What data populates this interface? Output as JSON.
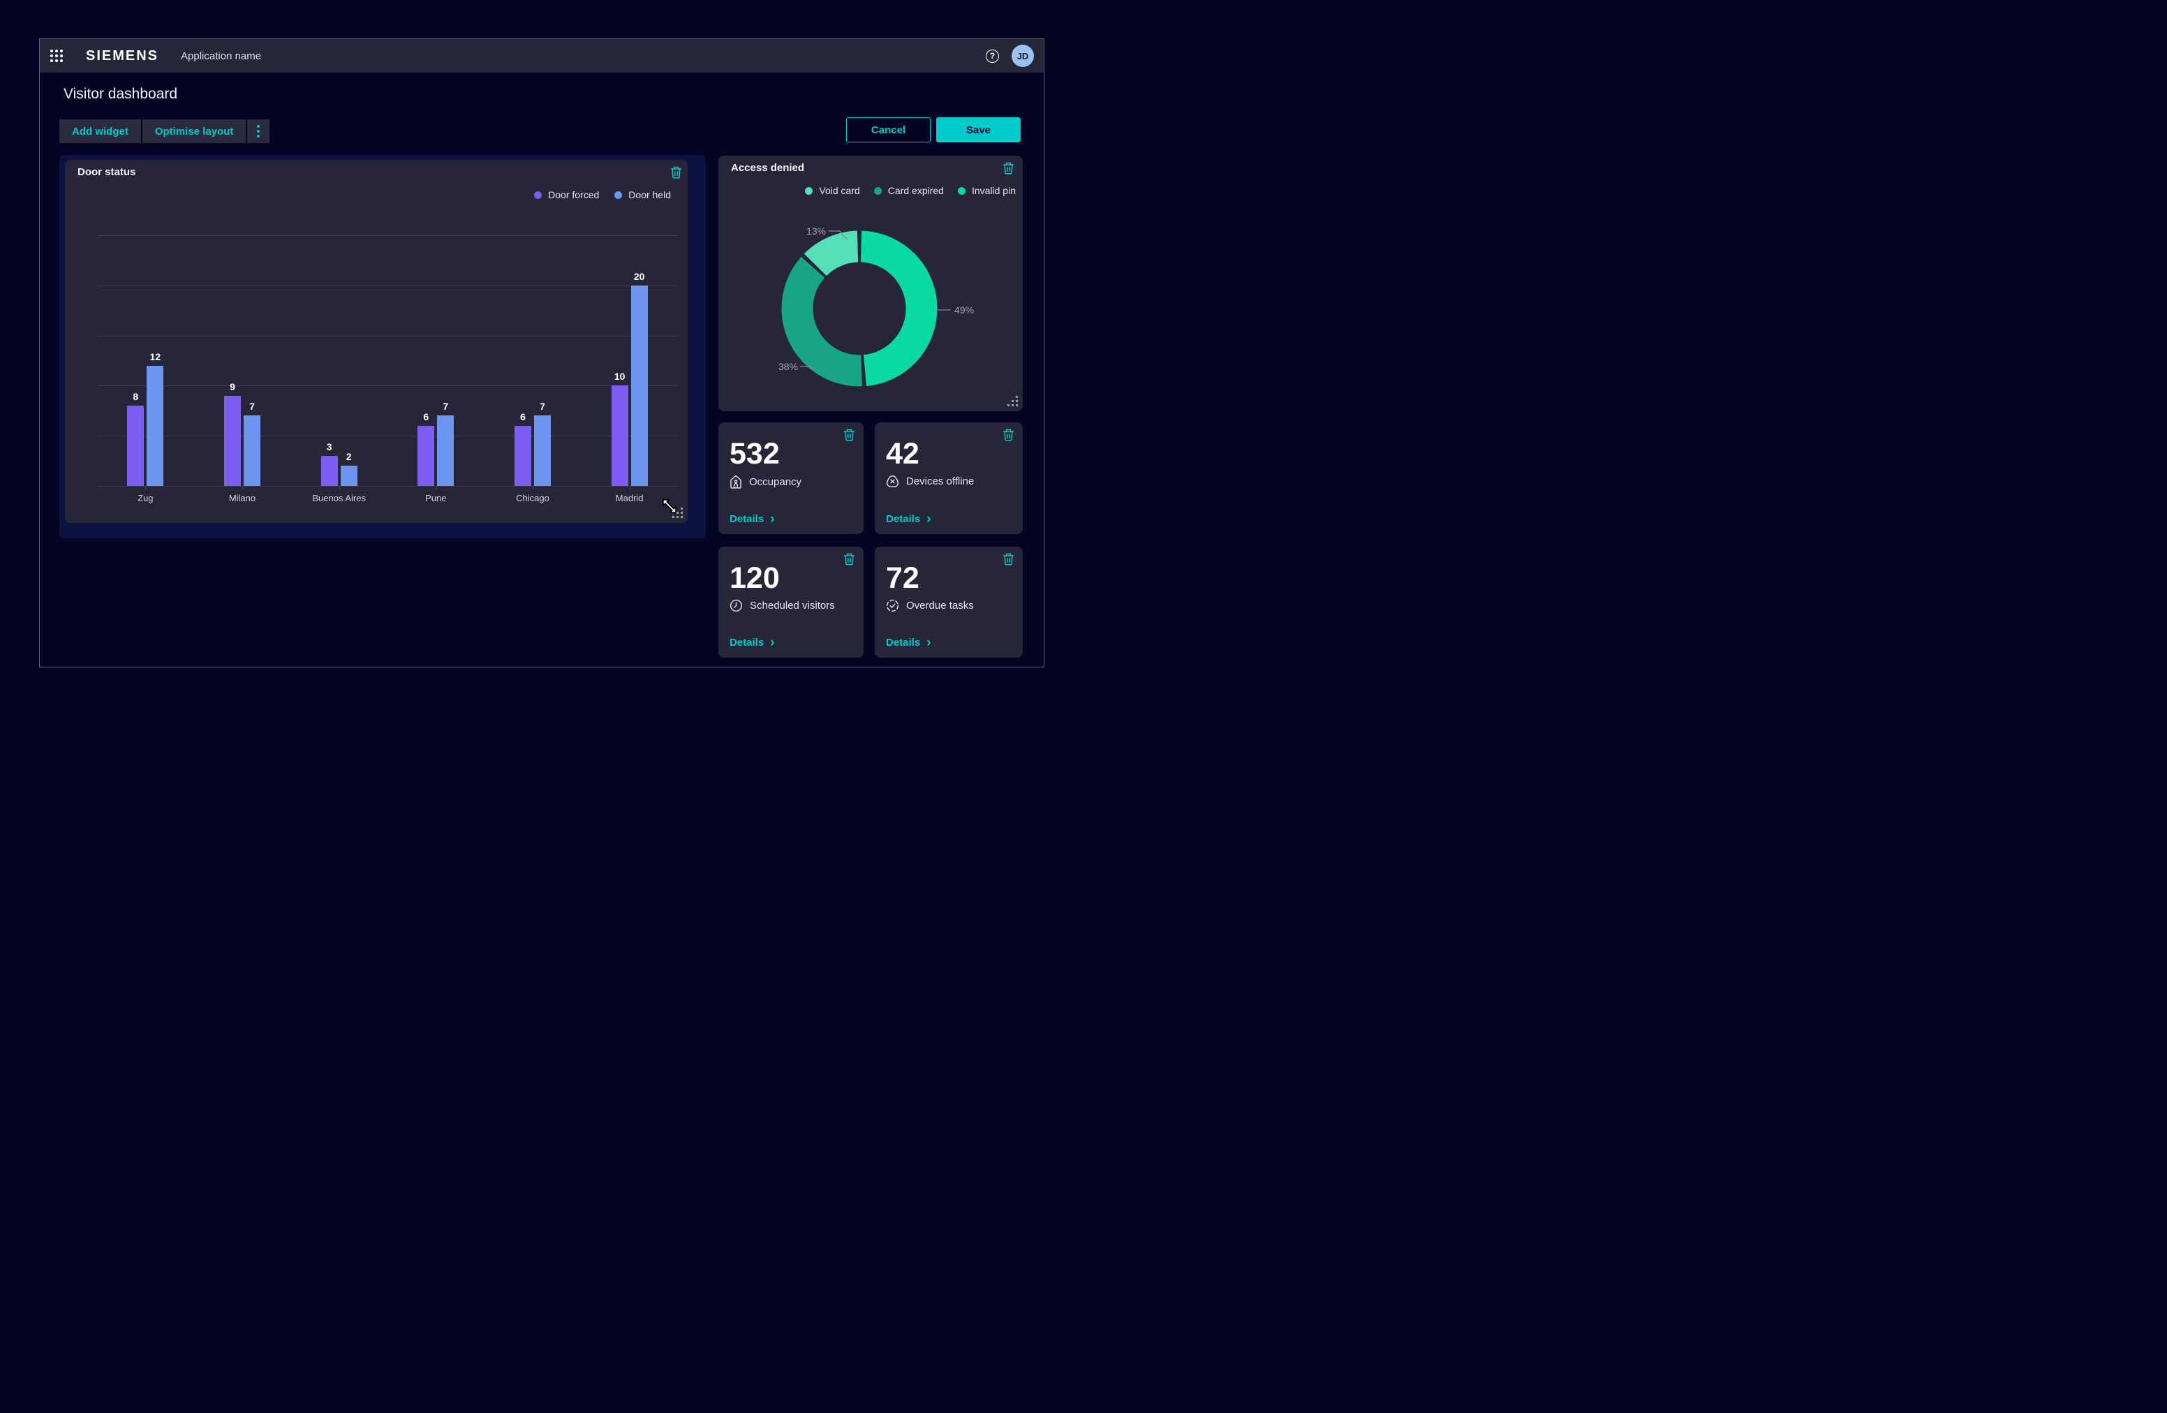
{
  "header": {
    "brand": "SIEMENS",
    "app_name": "Application name",
    "avatar_initials": "JD",
    "help_glyph": "?"
  },
  "page": {
    "title": "Visitor dashboard"
  },
  "toolbar": {
    "add_widget": "Add widget",
    "optimise_layout": "Optimise layout"
  },
  "actions": {
    "cancel": "Cancel",
    "save": "Save"
  },
  "colors": {
    "accent": "#00CCCC",
    "door_forced": "#7C5CF2",
    "door_held": "#6C96F0",
    "invalid_pin": "#0BD9A2",
    "card_expired": "#17A586",
    "void_card": "#55DFB6",
    "card_bg": "#262638",
    "page_bg": "#030321",
    "avatar_bg": "#9CC3F0"
  },
  "chart_data": [
    {
      "type": "bar",
      "title": "Door status",
      "categories": [
        "Zug",
        "Milano",
        "Buenos Aires",
        "Pune",
        "Chicago",
        "Madrid"
      ],
      "series": [
        {
          "name": "Door forced",
          "color": "#7C5CF2",
          "values": [
            8,
            9,
            3,
            6,
            6,
            10
          ]
        },
        {
          "name": "Door held",
          "color": "#6C96F0",
          "values": [
            12,
            7,
            2,
            7,
            7,
            20
          ]
        }
      ],
      "xlabel": "",
      "ylabel": "",
      "ylim": [
        0,
        25
      ],
      "grid": true,
      "legend_position": "top-right",
      "value_labels": true
    },
    {
      "type": "pie",
      "donut": true,
      "title": "Access denied",
      "slices": [
        {
          "label": "Invalid pin",
          "value": 49,
          "pct_label": "49%",
          "color": "#0BD9A2"
        },
        {
          "label": "Card expired",
          "value": 38,
          "pct_label": "38%",
          "color": "#17A586"
        },
        {
          "label": "Void card",
          "value": 13,
          "pct_label": "13%",
          "color": "#55DFB6"
        }
      ],
      "legend": [
        {
          "label": "Void card",
          "color": "#55DFB6"
        },
        {
          "label": "Card expired",
          "color": "#17A586"
        },
        {
          "label": "Invalid pin",
          "color": "#0BD9A2"
        }
      ],
      "start_angle": "top",
      "direction": "clockwise",
      "legend_position": "top-right"
    }
  ],
  "kpis": {
    "details_label": "Details",
    "chevron": "›",
    "items": [
      {
        "value": "532",
        "label": "Occupancy"
      },
      {
        "value": "42",
        "label": "Devices offline"
      },
      {
        "value": "120",
        "label": "Scheduled visitors"
      },
      {
        "value": "72",
        "label": "Overdue tasks"
      }
    ]
  }
}
